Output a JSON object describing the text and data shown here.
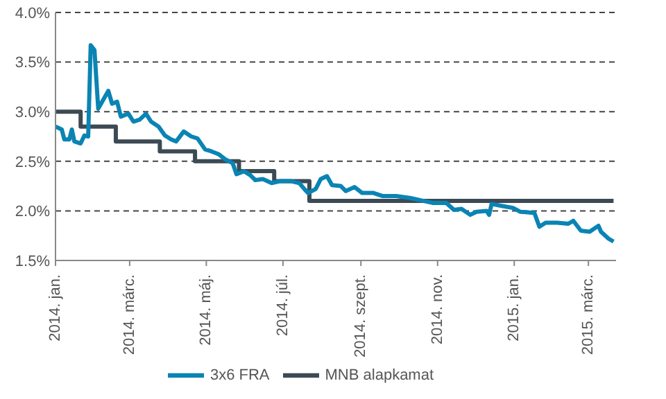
{
  "chart_data": {
    "type": "line",
    "ylim": [
      1.5,
      4.0
    ],
    "yticks": [
      {
        "value": 1.5,
        "label": "1.5%"
      },
      {
        "value": 2.0,
        "label": "2.0%"
      },
      {
        "value": 2.5,
        "label": "2.5%"
      },
      {
        "value": 3.0,
        "label": "3.0%"
      },
      {
        "value": 3.5,
        "label": "3.5%"
      },
      {
        "value": 4.0,
        "label": "4.0%"
      }
    ],
    "xlim": [
      "2014-01-01",
      "2015-03-23"
    ],
    "xticks": [
      {
        "value": "2014-01-01",
        "label": "2014. jan."
      },
      {
        "value": "2014-03-01",
        "label": "2014. márc."
      },
      {
        "value": "2014-05-01",
        "label": "2014. máj."
      },
      {
        "value": "2014-07-01",
        "label": "2014. júl."
      },
      {
        "value": "2014-09-01",
        "label": "2014. szept."
      },
      {
        "value": "2014-11-01",
        "label": "2014. nov."
      },
      {
        "value": "2015-01-01",
        "label": "2015. jan."
      },
      {
        "value": "2015-03-01",
        "label": "2015. márc."
      }
    ],
    "grid": "y",
    "legend": "bottom",
    "marker": "none",
    "series": [
      {
        "name": "MNB alapkamat",
        "type": "step",
        "color": "#3c4a54",
        "x": [
          "2014-01-01",
          "2014-01-21",
          "2014-02-18",
          "2014-03-25",
          "2014-04-22",
          "2014-05-27",
          "2014-06-24",
          "2014-07-22",
          "2015-03-21"
        ],
        "values": [
          3.0,
          2.85,
          2.7,
          2.6,
          2.5,
          2.4,
          2.3,
          2.1,
          2.1
        ]
      },
      {
        "name": "3x6 FRA",
        "color": "#0a84b4",
        "x": [
          "2014-01-01",
          "2014-01-06",
          "2014-01-08",
          "2014-01-12",
          "2014-01-14",
          "2014-01-16",
          "2014-01-21",
          "2014-01-24",
          "2014-01-27",
          "2014-01-29",
          "2014-02-01",
          "2014-02-04",
          "2014-02-08",
          "2014-02-12",
          "2014-02-15",
          "2014-02-19",
          "2014-02-22",
          "2014-02-28",
          "2014-03-04",
          "2014-03-09",
          "2014-03-14",
          "2014-03-18",
          "2014-03-24",
          "2014-03-29",
          "2014-04-03",
          "2014-04-07",
          "2014-04-13",
          "2014-04-19",
          "2014-04-24",
          "2014-04-30",
          "2014-05-05",
          "2014-05-11",
          "2014-05-16",
          "2014-05-22",
          "2014-05-25",
          "2014-05-31",
          "2014-06-05",
          "2014-06-09",
          "2014-06-15",
          "2014-06-22",
          "2014-06-29",
          "2014-07-07",
          "2014-07-14",
          "2014-07-18",
          "2014-07-21",
          "2014-07-27",
          "2014-07-31",
          "2014-08-05",
          "2014-08-09",
          "2014-08-16",
          "2014-08-20",
          "2014-08-27",
          "2014-09-02",
          "2014-09-11",
          "2014-09-18",
          "2014-09-29",
          "2014-10-10",
          "2014-10-21",
          "2014-10-28",
          "2014-11-08",
          "2014-11-14",
          "2014-11-20",
          "2014-11-27",
          "2014-12-02",
          "2014-12-10",
          "2014-12-12",
          "2014-12-14",
          "2014-12-22",
          "2014-12-31",
          "2015-01-06",
          "2015-01-17",
          "2015-01-21",
          "2015-01-26",
          "2015-02-04",
          "2015-02-13",
          "2015-02-17",
          "2015-02-23",
          "2015-03-02",
          "2015-03-09",
          "2015-03-11",
          "2015-03-17",
          "2015-03-21"
        ],
        "values": [
          2.85,
          2.82,
          2.72,
          2.72,
          2.82,
          2.7,
          2.68,
          2.76,
          2.75,
          3.67,
          3.62,
          3.03,
          3.12,
          3.21,
          3.08,
          3.1,
          2.95,
          2.98,
          2.9,
          2.92,
          2.98,
          2.9,
          2.85,
          2.76,
          2.72,
          2.7,
          2.8,
          2.75,
          2.73,
          2.62,
          2.6,
          2.57,
          2.52,
          2.48,
          2.37,
          2.4,
          2.36,
          2.31,
          2.32,
          2.28,
          2.3,
          2.3,
          2.28,
          2.22,
          2.18,
          2.22,
          2.32,
          2.35,
          2.26,
          2.25,
          2.2,
          2.24,
          2.18,
          2.18,
          2.15,
          2.15,
          2.13,
          2.1,
          2.08,
          2.08,
          2.01,
          2.02,
          1.96,
          1.99,
          2.0,
          1.96,
          2.07,
          2.05,
          2.03,
          1.99,
          1.98,
          1.84,
          1.88,
          1.88,
          1.87,
          1.9,
          1.8,
          1.79,
          1.85,
          1.79,
          1.72,
          1.69
        ]
      }
    ]
  }
}
